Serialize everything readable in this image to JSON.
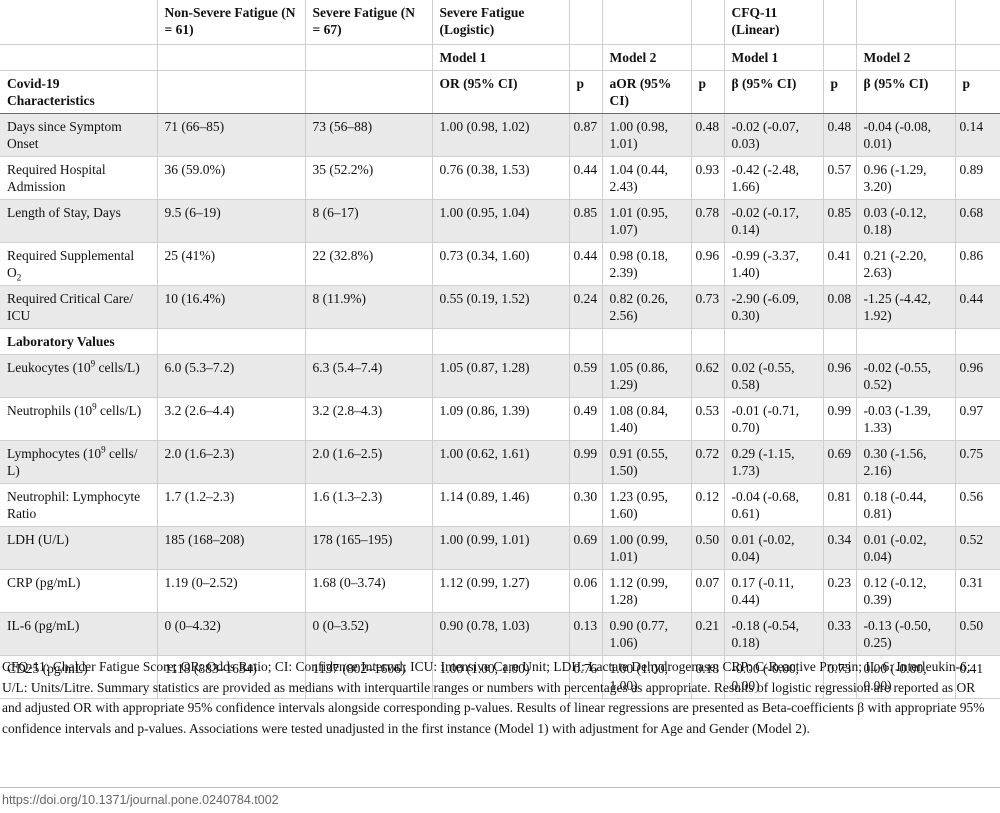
{
  "header": {
    "groups": [
      "",
      "Non-Severe Fatigue (N = 61)",
      "Severe Fatigue (N = 67)",
      "Severe Fatigue (Logistic)",
      "",
      "",
      "",
      "CFQ-11 (Linear)",
      "",
      "",
      ""
    ],
    "models": [
      "",
      "",
      "",
      "Model 1",
      "",
      "Model 2",
      "",
      "Model 1",
      "",
      "Model 2",
      ""
    ],
    "stats": [
      "Covid-19 Characteristics",
      "",
      "",
      "OR (95% CI)",
      "p",
      "aOR (95% CI)",
      "p",
      "β (95% CI)",
      "p",
      "β (95% CI)",
      "p"
    ]
  },
  "rows": [
    {
      "label": "Days since Symptom Onset",
      "cells": [
        "71 (66–85)",
        "73 (56–88)",
        "1.00 (0.98, 1.02)",
        "0.87",
        "1.00 (0.98, 1.01)",
        "0.48",
        "-0.02 (-0.07, 0.03)",
        "0.48",
        "-0.04 (-0.08, 0.01)",
        "0.14"
      ]
    },
    {
      "label": "Required Hospital Admission",
      "cells": [
        "36 (59.0%)",
        "35 (52.2%)",
        "0.76 (0.38, 1.53)",
        "0.44",
        "1.04 (0.44, 2.43)",
        "0.93",
        "-0.42 (-2.48, 1.66)",
        "0.57",
        "0.96 (-1.29, 3.20)",
        "0.89"
      ]
    },
    {
      "label": "Length of Stay, Days",
      "cells": [
        "9.5 (6–19)",
        "8 (6–17)",
        "1.00 (0.95, 1.04)",
        "0.85",
        "1.01 (0.95, 1.07)",
        "0.78",
        "-0.02 (-0.17, 0.14)",
        "0.85",
        "0.03 (-0.12, 0.18)",
        "0.68"
      ]
    },
    {
      "label_main": "Required Supplemental O",
      "label_sub": "2",
      "cells": [
        "25 (41%)",
        "22 (32.8%)",
        "0.73 (0.34, 1.60)",
        "0.44",
        "0.98 (0.18, 2.39)",
        "0.96",
        "-0.99 (-3.37, 1.40)",
        "0.41",
        "0.21 (-2.20, 2.63)",
        "0.86"
      ]
    },
    {
      "label": "Required Critical Care/ ICU",
      "cells": [
        "10 (16.4%)",
        "8 (11.9%)",
        "0.55 (0.19, 1.52)",
        "0.24",
        "0.82 (0.26, 2.56)",
        "0.73",
        "-2.90 (-6.09, 0.30)",
        "0.08",
        "-1.25 (-4.42, 1.92)",
        "0.44"
      ]
    },
    {
      "section": "Laboratory Values"
    },
    {
      "label_main": "Leukocytes (10",
      "label_sup": "9",
      "label_tail": " cells/L)",
      "cells": [
        "6.0 (5.3–7.2)",
        "6.3 (5.4–7.4)",
        "1.05 (0.87, 1.28)",
        "0.59",
        "1.05 (0.86, 1.29)",
        "0.62",
        "0.02 (-0.55, 0.58)",
        "0.96",
        "-0.02 (-0.55, 0.52)",
        "0.96"
      ]
    },
    {
      "label_main": "Neutrophils (10",
      "label_sup": "9",
      "label_tail": " cells/L)",
      "cells": [
        "3.2 (2.6–4.4)",
        "3.2 (2.8–4.3)",
        "1.09 (0.86, 1.39)",
        "0.49",
        "1.08 (0.84, 1.40)",
        "0.53",
        "-0.01 (-0.71, 0.70)",
        "0.99",
        "-0.03 (-1.39, 1.33)",
        "0.97"
      ]
    },
    {
      "label_main": "Lymphocytes (10",
      "label_sup": "9",
      "label_tail": " cells/ L)",
      "cells": [
        "2.0 (1.6–2.3)",
        "2.0 (1.6–2.5)",
        "1.00 (0.62, 1.61)",
        "0.99",
        "0.91 (0.55, 1.50)",
        "0.72",
        "0.29 (-1.15, 1.73)",
        "0.69",
        "0.30 (-1.56, 2.16)",
        "0.75"
      ]
    },
    {
      "label": "Neutrophil: Lymphocyte Ratio",
      "cells": [
        "1.7 (1.2–2.3)",
        "1.6 (1.3–2.3)",
        "1.14 (0.89, 1.46)",
        "0.30",
        "1.23 (0.95, 1.60)",
        "0.12",
        "-0.04 (-0.68, 0.61)",
        "0.81",
        "0.18 (-0.44, 0.81)",
        "0.56"
      ]
    },
    {
      "label": "LDH (U/L)",
      "cells": [
        "185 (168–208)",
        "178 (165–195)",
        "1.00 (0.99, 1.01)",
        "0.69",
        "1.00 (0.99, 1.01)",
        "0.50",
        "0.01 (-0.02, 0.04)",
        "0.34",
        "0.01 (-0.02, 0.04)",
        "0.52"
      ]
    },
    {
      "label": "CRP (pg/mL)",
      "cells": [
        "1.19 (0–2.52)",
        "1.68 (0–3.74)",
        "1.12 (0.99, 1.27)",
        "0.06",
        "1.12 (0.99, 1.28)",
        "0.07",
        "0.17 (-0.11, 0.44)",
        "0.23",
        "0.12 (-0.12, 0.39)",
        "0.31"
      ]
    },
    {
      "label": "IL-6 (pg/mL)",
      "cells": [
        "0 (0–4.32)",
        "0 (0–3.52)",
        "0.90 (0.78, 1.03)",
        "0.13",
        "0.90 (0.77, 1.06)",
        "0.21",
        "-0.18 (-0.54, 0.18)",
        "0.33",
        "-0.13 (-0.50, 0.25)",
        "0.50"
      ]
    },
    {
      "label": "CD25 (pg/mL)",
      "cells": [
        "1118 (883–1634)",
        "1137 (802–1606)",
        "1.00 (1.00, 1.00)",
        "0.76",
        "1.00 (1.00, 1.00)",
        "0.18",
        "-0.00 (-0.00, 0.00)",
        "0.73",
        "0.00 (-0.00, 0.00)",
        "0.41"
      ]
    }
  ],
  "footnote": "CFQ-11: Chalder Fatigue Score; OR: Odds Ratio; CI: Confidence Interval; ICU: Intensive Care Unit; LDH: Lactate Dehydrogenase; CRP: C-Reactive Protein; IL-6: Interleukin-6; U/L: Units/Litre. Summary statistics are provided as medians with interquartile ranges or numbers with percentages as appropriate. Results of logistic regression are reported as OR and adjusted OR with appropriate 95% confidence intervals alongside corresponding p-values. Results of linear regressions are presented as Beta-coefficients β with appropriate 95% confidence intervals and p-values. Associations were tested unadjusted in the first instance (Model 1) with adjustment for Age and Gender (Model 2).",
  "doi": "https://doi.org/10.1371/journal.pone.0240784.t002"
}
